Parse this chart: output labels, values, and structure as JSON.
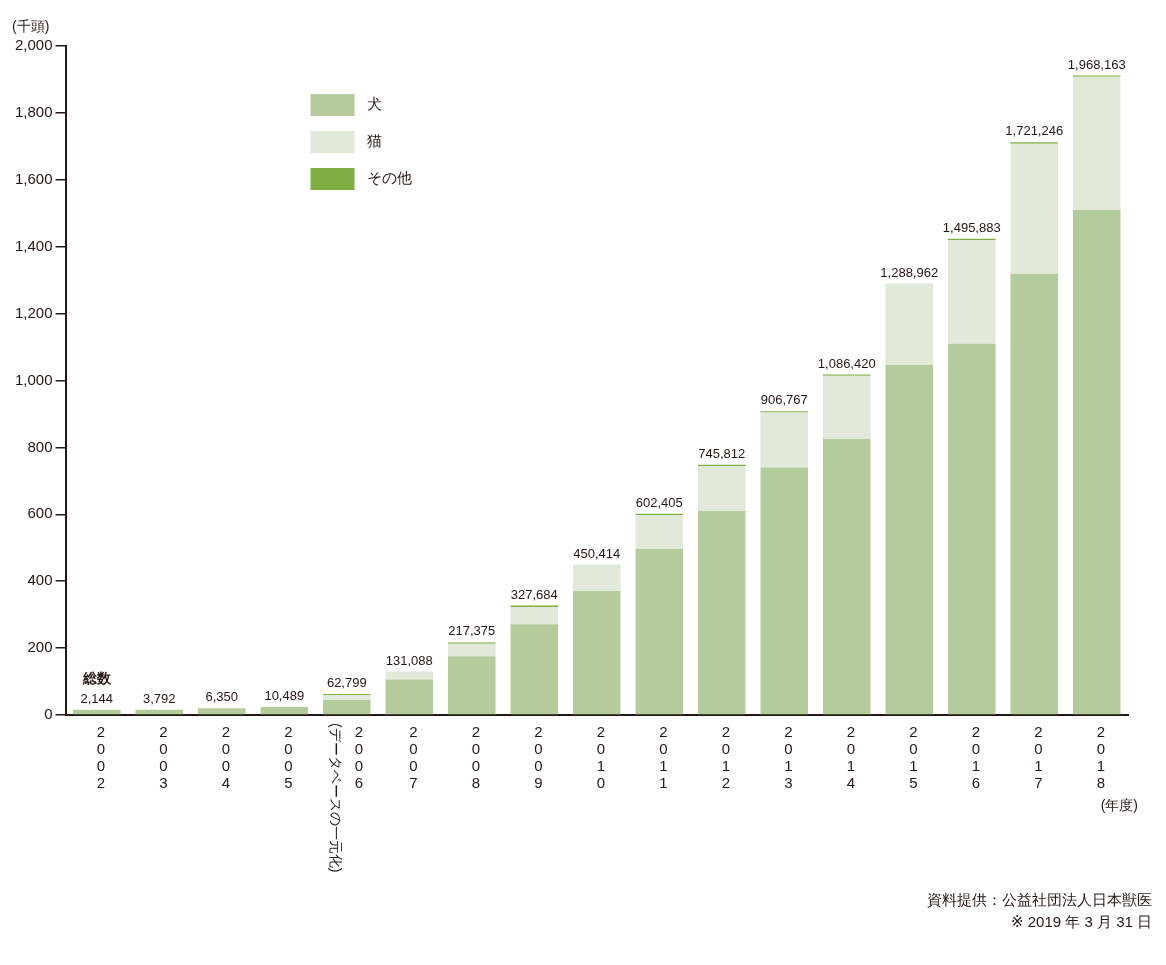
{
  "chart_data": {
    "type": "bar",
    "stacked": true,
    "ylabel": "(千頭)",
    "xlabel": "(年度)",
    "categories": [
      "2002",
      "2003",
      "2004",
      "2005",
      "2006(データベースの一元化)",
      "2007",
      "2008",
      "2009",
      "2010",
      "2011",
      "2012",
      "2013",
      "2014",
      "2015",
      "2016",
      "2017",
      "2018"
    ],
    "series": [
      {
        "name": "犬",
        "color": "#b4cc9c",
        "values": [
          16,
          16,
          20,
          24,
          45,
          106,
          176,
          271,
          371,
          496,
          610,
          740,
          825,
          1046,
          1110,
          1319,
          1510
        ]
      },
      {
        "name": "猫",
        "color": "#e1ead8",
        "values": [
          0,
          0,
          0,
          0,
          14,
          24,
          37,
          52,
          79,
          102,
          134,
          164,
          189,
          244,
          310,
          389,
          398
        ]
      },
      {
        "name": "その他",
        "color": "#7fae42",
        "values": [
          0,
          0,
          0,
          0,
          4,
          0,
          4,
          4,
          0,
          4,
          4,
          4,
          4,
          0,
          4,
          4,
          4
        ]
      }
    ],
    "ylim": [
      0,
      2000
    ],
    "yticks": [
      0,
      200,
      400,
      600,
      800,
      {
        "value": 1000,
        "label": "1,000"
      },
      {
        "value": 1200,
        "label": "1,200"
      },
      {
        "value": 1400,
        "label": "1,400"
      },
      {
        "value": 1600,
        "label": "1,600"
      },
      {
        "value": 1800,
        "label": "1,800"
      },
      {
        "value": 2000,
        "label": "2,000"
      }
    ],
    "grid": false,
    "legend": "top left",
    "annotations": [
      {
        "text": "総数",
        "x": "2002",
        "y": 16
      },
      {
        "text": "2,144",
        "x": "2002",
        "y": 16
      },
      {
        "text": "3,792",
        "x": "2003",
        "y": 16
      },
      {
        "text": "6,350",
        "x": "2004",
        "y": 20
      },
      {
        "text": "10,489",
        "x": "2005",
        "y": 24
      },
      {
        "text": "62,799",
        "x": "2006(データベースの一元化)",
        "y": 63
      },
      {
        "text": "131,088",
        "x": "2007",
        "y": 130
      },
      {
        "text": "217,375",
        "x": "2008",
        "y": 217
      },
      {
        "text": "327,684",
        "x": "2009",
        "y": 327
      },
      {
        "text": "450,414",
        "x": "2010",
        "y": 450
      },
      {
        "text": "602,405",
        "x": "2011",
        "y": 602
      },
      {
        "text": "745,812",
        "x": "2012",
        "y": 748
      },
      {
        "text": "906,767",
        "x": "2013",
        "y": 908
      },
      {
        "text": "1,086,420",
        "x": "2014",
        "y": 1018
      },
      {
        "text": "1,288,962",
        "x": "2015",
        "y": 1290
      },
      {
        "text": "1,495,883",
        "x": "2016",
        "y": 1424
      },
      {
        "text": "1,721,246",
        "x": "2017",
        "y": 1712
      },
      {
        "text": "1,968,163",
        "x": "2018",
        "y": 1912
      },
      "資料提供：公益社団法人日本獣医",
      "※ 2019 年 3 月 31 日"
    ]
  }
}
